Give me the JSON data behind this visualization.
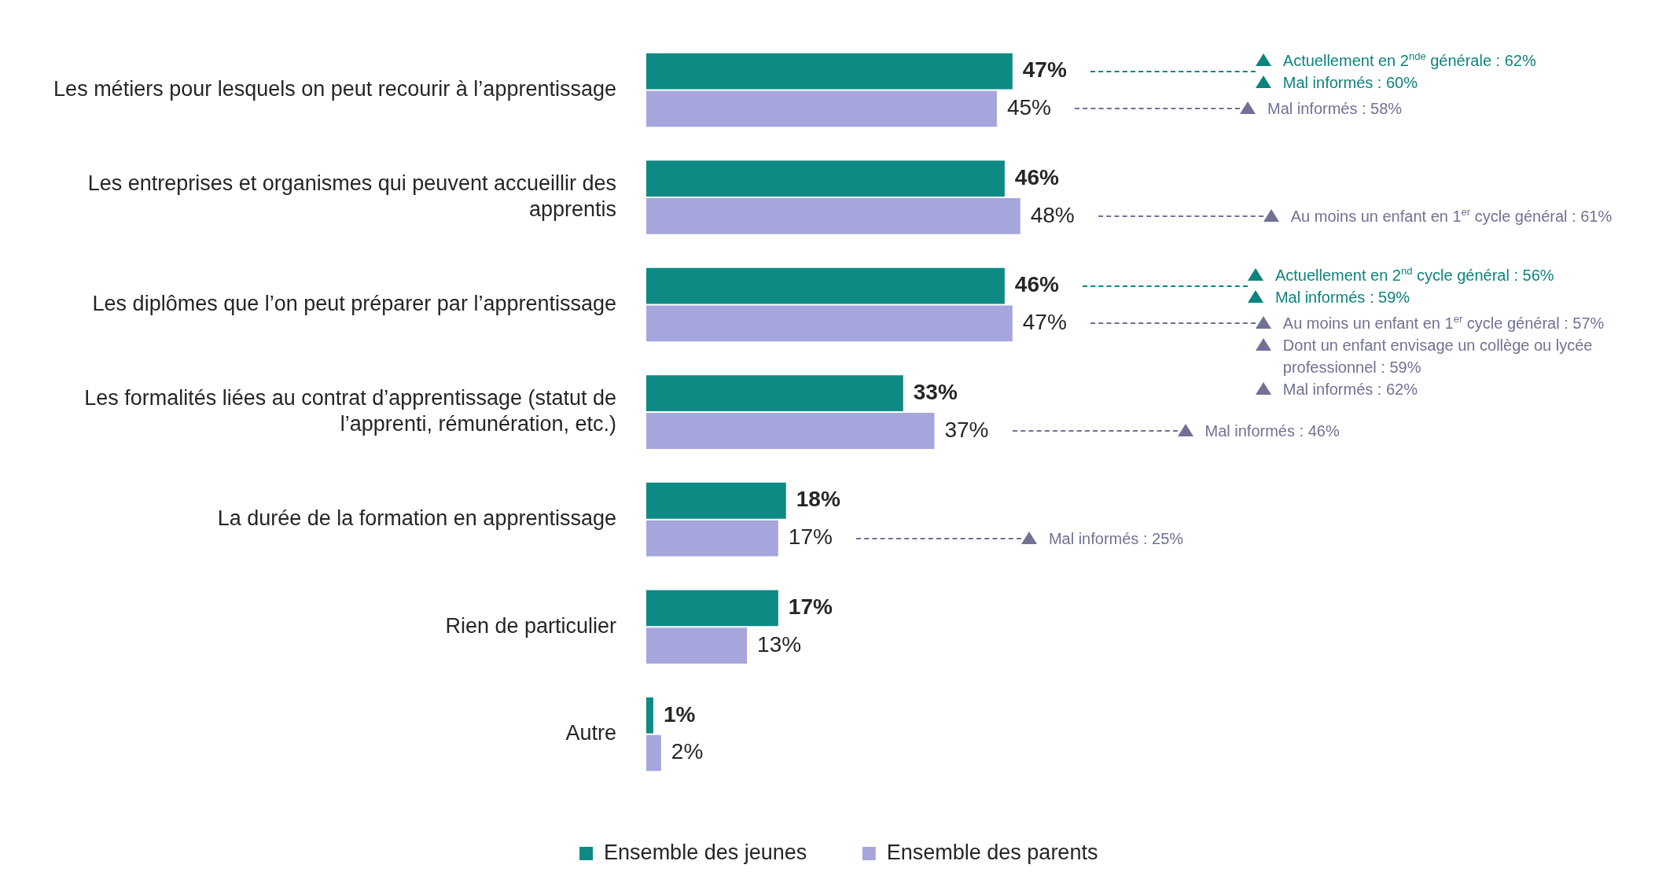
{
  "chart_data": {
    "type": "bar",
    "orientation": "horizontal",
    "categories": [
      "Les métiers pour lesquels on peut recourir à l’apprentissage",
      "Les entreprises et organismes qui peuvent accueillir des apprentis",
      "Les diplômes que l’on peut préparer par l’apprentissage",
      "Les formalités liées au contrat d’apprentissage (statut de l’apprenti, rémunération, etc.)",
      "La durée de la formation en apprentissage",
      "Rien de particulier",
      "Autre"
    ],
    "series": [
      {
        "name": "Ensemble des jeunes",
        "color": "#0e8a84",
        "values": [
          47,
          46,
          46,
          33,
          18,
          17,
          1
        ],
        "value_labels": [
          "47%",
          "46%",
          "46%",
          "33%",
          "18%",
          "17%",
          "1%"
        ]
      },
      {
        "name": "Ensemble des parents",
        "color": "#a6a6dc",
        "values": [
          45,
          48,
          47,
          37,
          17,
          13,
          2
        ],
        "value_labels": [
          "45%",
          "48%",
          "47%",
          "37%",
          "17%",
          "13%",
          "2%"
        ]
      }
    ],
    "legend": "bottom",
    "grid": false,
    "annotations": [
      "Actuellement en 2$^{nde}$ générale : 62%",
      "Mal informés : 60%",
      "Mal informés : 58%",
      "Au moins un enfant en 1$^{er}$ cycle général : 61%",
      "Actuellement en 2$^{nd}$ cycle général : 56%",
      "Mal informés : 59%",
      "Au moins un enfant en 1$^{er}$ cycle général : 57%",
      "Dont un enfant envisage un collège ou lycée professionnel : 59%",
      "Mal informés : 62%",
      "Mal informés : 46%",
      "Mal informés : 25%"
    ]
  }
}
